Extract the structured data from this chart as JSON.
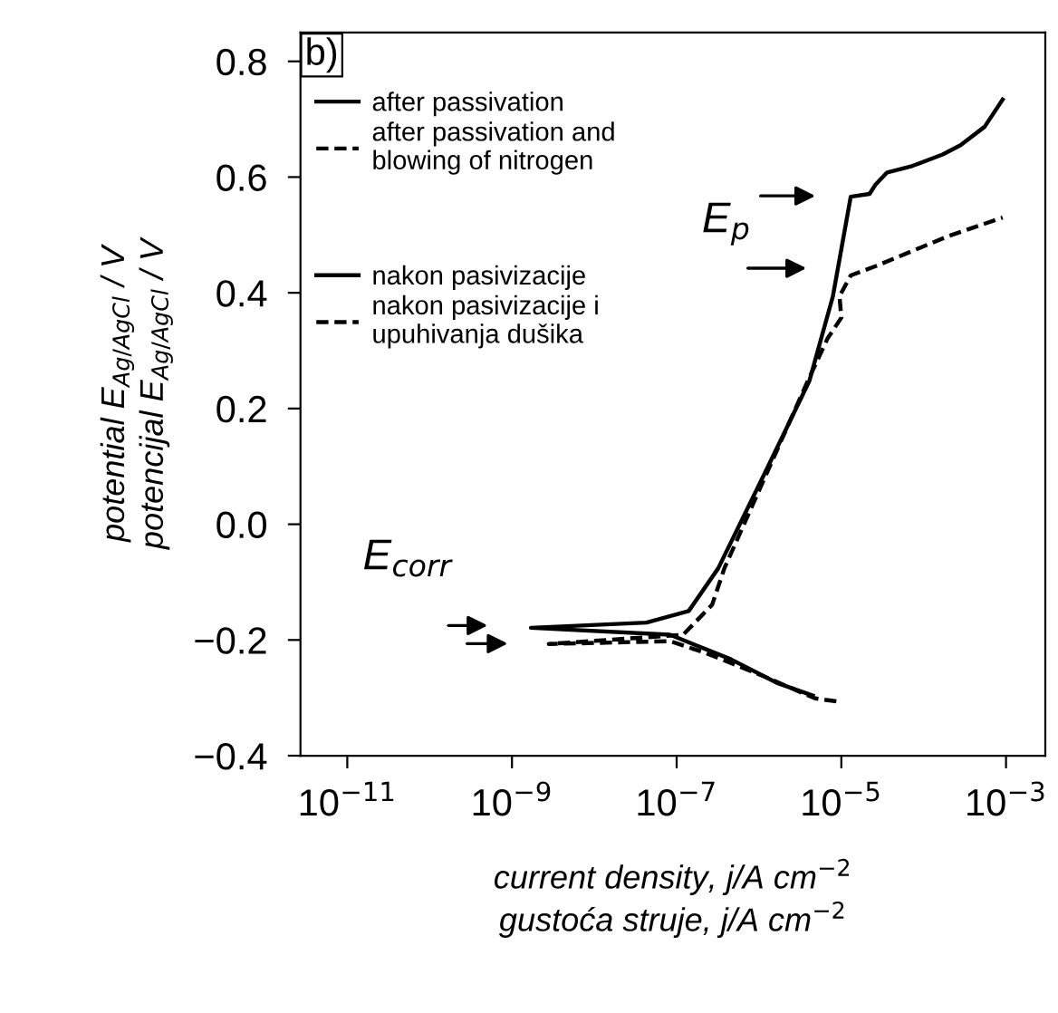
{
  "chart_data": {
    "type": "line",
    "title": "b)",
    "xlabel": "current density, j/A cm$^{−2}$\ngustoća struje, j/A cm$^{−2}$",
    "ylabel": "potential E$_{Ag/AgCl}$ / V\npotencijal E$_{Ag/AgCl}$ / V",
    "log": "x",
    "xlim": [
      2.7e-12,
      0.003
    ],
    "ylim": [
      -0.4,
      0.85
    ],
    "xticks": [
      {
        "value": 1e-11,
        "label": "10$^{−11}$"
      },
      {
        "value": 1e-09,
        "label": "10$^{−9}$"
      },
      {
        "value": 1e-07,
        "label": "10$^{−7}$"
      },
      {
        "value": 1e-05,
        "label": "10$^{−5}$"
      },
      {
        "value": 0.001,
        "label": "10$^{−3}$"
      }
    ],
    "yticks": [
      {
        "value": -0.4,
        "label": "−0.4"
      },
      {
        "value": -0.2,
        "label": "−0.2"
      },
      {
        "value": 0,
        "label": "0.0"
      },
      0.2,
      0.4,
      0.6,
      0.8
    ],
    "grid": false,
    "legend": "top left",
    "marker": "none",
    "series": [
      {
        "name": "after passivation",
        "color": "#000000",
        "line_style": "solid",
        "x": [
          4.5e-06,
          1.7e-06,
          4.5e-07,
          8.3e-08,
          1.7e-09,
          4.3e-08,
          1.4e-07,
          3.2e-07,
          1.2e-06,
          4.1e-06,
          7.9e-06,
          1.3e-05,
          2.2e-05,
          2.6e-05,
          3.6e-05,
          7.2e-05,
          0.00017,
          0.00028,
          0.00055,
          0.00091
        ],
        "values": [
          -0.296,
          -0.275,
          -0.233,
          -0.191,
          -0.179,
          -0.17,
          -0.15,
          -0.076,
          0.091,
          0.248,
          0.394,
          0.566,
          0.571,
          0.587,
          0.608,
          0.619,
          0.639,
          0.655,
          0.687,
          0.734
        ]
      },
      {
        "name": "after passivation and\nblowing of nitrogen",
        "color": "#000000",
        "line_style": "dashed",
        "x": [
          8.7e-06,
          4.8e-06,
          1.2e-06,
          2.3e-07,
          8.3e-08,
          2.8e-09,
          1.2e-07,
          2.7e-07,
          3.8e-07,
          4.1e-06,
          6.8e-06,
          1e-05,
          9.5e-06,
          1.3e-05,
          2.6e-05,
          7.2e-05,
          0.0002,
          0.00091
        ],
        "values": [
          -0.306,
          -0.301,
          -0.264,
          -0.223,
          -0.202,
          -0.207,
          -0.191,
          -0.139,
          -0.076,
          0.254,
          0.321,
          0.357,
          0.394,
          0.43,
          0.446,
          0.472,
          0.498,
          0.53
        ]
      }
    ],
    "annotations": [
      "nakon pasivizacije",
      "nakon pasivizacije i\nupuhivanja dušika",
      "E$_{corr}$",
      "E$_{p}$"
    ]
  }
}
